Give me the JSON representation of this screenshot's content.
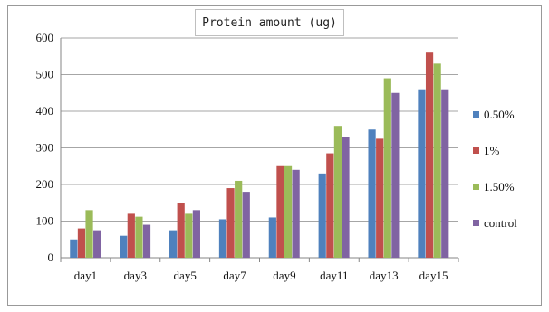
{
  "chart_data": {
    "type": "bar",
    "title": "Protein amount (ug)",
    "xlabel": "",
    "ylabel": "",
    "ylim": [
      0,
      600
    ],
    "yticks": [
      0,
      100,
      200,
      300,
      400,
      500,
      600
    ],
    "grid": true,
    "legend_position": "right",
    "categories": [
      "day1",
      "day3",
      "day5",
      "day7",
      "day9",
      "day11",
      "day13",
      "day15"
    ],
    "series": [
      {
        "name": "0.50%",
        "color": "#4f81bd",
        "values": [
          50,
          60,
          75,
          105,
          110,
          230,
          350,
          460
        ]
      },
      {
        "name": "1%",
        "color": "#c0504d",
        "values": [
          80,
          120,
          150,
          190,
          250,
          285,
          325,
          560
        ]
      },
      {
        "name": "1.50%",
        "color": "#9bbb59",
        "values": [
          130,
          112,
          120,
          210,
          250,
          360,
          490,
          530
        ]
      },
      {
        "name": "control",
        "color": "#8064a2",
        "values": [
          75,
          90,
          130,
          180,
          240,
          330,
          450,
          460
        ]
      }
    ]
  }
}
